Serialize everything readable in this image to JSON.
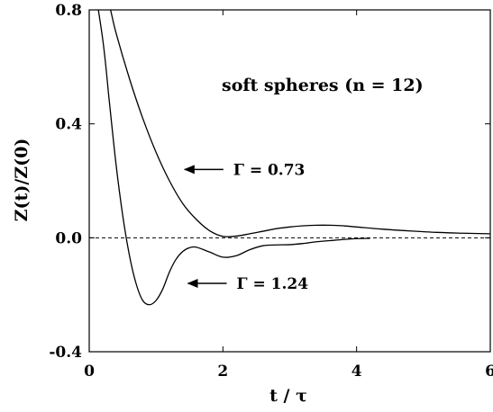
{
  "chart_data": {
    "type": "line",
    "title": "",
    "xlabel": "t / τ",
    "ylabel": "Z(t)/Z(0)",
    "xlim": [
      0,
      6
    ],
    "ylim": [
      -0.4,
      0.8
    ],
    "x_ticks": [
      0,
      2,
      4,
      6
    ],
    "x_tick_labels": [
      "0",
      "2",
      "4",
      "6"
    ],
    "y_ticks": [
      -0.4,
      0.0,
      0.4,
      0.8
    ],
    "y_tick_labels": [
      "-0.4",
      "0.0",
      "0.4",
      "0.8"
    ],
    "grid": false,
    "legend": "none",
    "reference_line": {
      "y": 0.0,
      "style": "dashed"
    },
    "annotation": "soft spheres (n = 12)",
    "series": [
      {
        "label": "Γ = 0.73",
        "x": [
          0.0,
          0.25,
          0.4,
          0.6,
          0.8,
          1.0,
          1.2,
          1.4,
          1.6,
          1.8,
          2.0,
          2.2,
          2.4,
          2.6,
          2.8,
          3.0,
          3.2,
          3.4,
          3.6,
          3.8,
          4.0,
          4.4,
          4.8,
          5.2,
          5.6,
          6.0
        ],
        "y": [
          1.0,
          0.86,
          0.72,
          0.56,
          0.42,
          0.3,
          0.2,
          0.12,
          0.065,
          0.025,
          0.005,
          0.006,
          0.014,
          0.023,
          0.032,
          0.038,
          0.042,
          0.044,
          0.044,
          0.042,
          0.038,
          0.03,
          0.024,
          0.019,
          0.016,
          0.014
        ]
      },
      {
        "label": "Γ = 1.24",
        "x": [
          0.0,
          0.2,
          0.3,
          0.4,
          0.5,
          0.6,
          0.7,
          0.8,
          0.9,
          1.0,
          1.1,
          1.2,
          1.3,
          1.4,
          1.5,
          1.6,
          1.8,
          2.0,
          2.2,
          2.4,
          2.6,
          2.8,
          3.0,
          3.2,
          3.4,
          3.6,
          3.8,
          4.0,
          4.2
        ],
        "y": [
          1.0,
          0.7,
          0.48,
          0.26,
          0.08,
          -0.06,
          -0.16,
          -0.22,
          -0.235,
          -0.22,
          -0.18,
          -0.12,
          -0.075,
          -0.048,
          -0.035,
          -0.033,
          -0.05,
          -0.068,
          -0.063,
          -0.042,
          -0.028,
          -0.025,
          -0.024,
          -0.02,
          -0.014,
          -0.01,
          -0.006,
          -0.003,
          -0.002
        ]
      }
    ],
    "curve_annotations": [
      {
        "text": "Γ = 0.73",
        "arrow_to": [
          1.4,
          0.24
        ]
      },
      {
        "text": "Γ = 1.24",
        "arrow_to": [
          1.45,
          -0.16
        ]
      }
    ]
  }
}
